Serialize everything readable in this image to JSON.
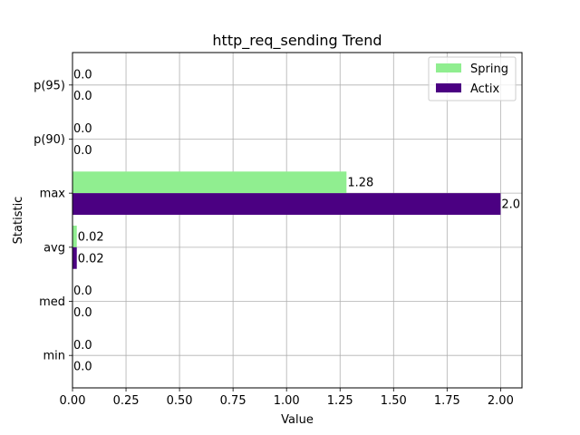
{
  "chart_data": {
    "type": "bar",
    "orientation": "horizontal",
    "title": "http_req_sending Trend",
    "xlabel": "Value",
    "ylabel": "Statistic",
    "categories": [
      "min",
      "med",
      "avg",
      "max",
      "p(90)",
      "p(95)"
    ],
    "series": [
      {
        "name": "Spring",
        "color": "#90EE90",
        "values": [
          0.0,
          0.0,
          0.02,
          1.28,
          0.0,
          0.0
        ],
        "labels": [
          "0.0",
          "0.0",
          "0.02",
          "1.28",
          "0.0",
          "0.0"
        ]
      },
      {
        "name": "Actix",
        "color": "#4B0082",
        "values": [
          0.0,
          0.0,
          0.02,
          2.0,
          0.0,
          0.0
        ],
        "labels": [
          "0.0",
          "0.0",
          "0.02",
          "2.0",
          "0.0",
          "0.0"
        ]
      }
    ],
    "xlim": [
      0,
      2.1
    ],
    "xticks": [
      "0.00",
      "0.25",
      "0.50",
      "0.75",
      "1.00",
      "1.25",
      "1.50",
      "1.75",
      "2.00"
    ],
    "grid": true,
    "legend": "top-right"
  }
}
